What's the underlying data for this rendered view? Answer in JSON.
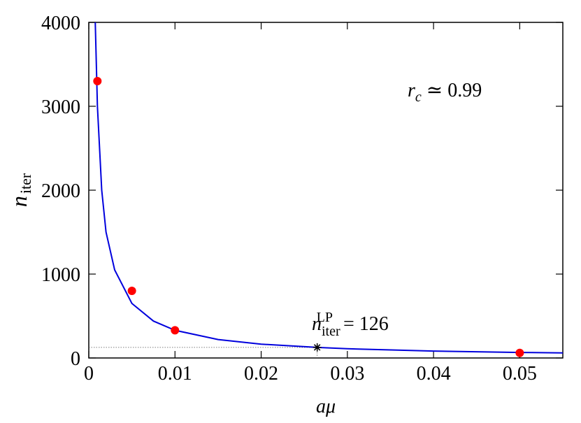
{
  "chart_data": {
    "type": "line",
    "xlabel": {
      "main": "aμ"
    },
    "ylabel": {
      "main": "n",
      "sub": "iter"
    },
    "xlim": [
      0,
      0.055
    ],
    "ylim": [
      0,
      4000
    ],
    "xticks": [
      0,
      0.01,
      0.02,
      0.03,
      0.04,
      0.05
    ],
    "yticks": [
      0,
      1000,
      2000,
      3000,
      4000
    ],
    "curve": {
      "color": "#0000dd",
      "x": [
        0.00075,
        0.001,
        0.0015,
        0.002,
        0.003,
        0.005,
        0.0075,
        0.01,
        0.015,
        0.02,
        0.0265,
        0.03,
        0.04,
        0.05,
        0.055
      ],
      "values": [
        4000,
        3000,
        2000,
        1500,
        1050,
        650,
        440,
        330,
        220,
        165,
        126,
        110,
        82,
        66,
        60
      ]
    },
    "points": {
      "color": "#ff0000",
      "x": [
        0.001,
        0.005,
        0.01,
        0.05
      ],
      "values": [
        3300,
        800,
        330,
        60
      ]
    },
    "marker": {
      "x": 0.0265,
      "value": 126,
      "color": "#000000"
    },
    "annotations": [
      {
        "main": "r",
        "sub": "c",
        "rest": " ≃ 0.99"
      },
      {
        "main": "n",
        "sub": "iter",
        "sup": "LP",
        "rest": " = 126"
      }
    ]
  }
}
